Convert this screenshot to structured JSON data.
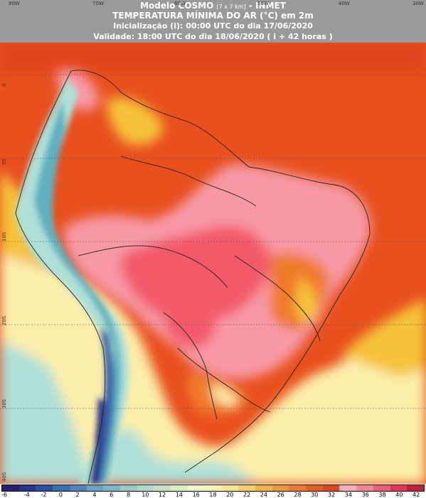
{
  "header": {
    "line1_main": "Modelo COSMO",
    "line1_small": "[7 x 7 km]",
    "line1_tail": "- INMET",
    "line2": "TEMPERATURA MÍNIMA DO AR (°C) em 2m",
    "line3": "Inicialização (i): 00:00 UTC do dia 17/06/2020",
    "line4": "Validade: 18:00 UTC do dia 18/06/2020 ( i + 42 horas )"
  },
  "map": {
    "longitude_labels": [
      "80W",
      "70W",
      "60W",
      "50W",
      "40W",
      "30W"
    ],
    "latitude_labels": [
      "0",
      "5S",
      "10S",
      "20S",
      "30S",
      "40S"
    ],
    "colors": {
      "very_hot": "#f25a6a",
      "hot_pink": "#f79aa6",
      "hot": "#e8501e",
      "warm": "#f07a2a",
      "mild": "#f6c23a",
      "cool": "#fbeeaa",
      "cold": "#aee0d8",
      "colder": "#5fb0c0",
      "freezing": "#3b5ea8",
      "subzero": "#1c1f7a"
    }
  },
  "legend": {
    "labels": [
      "-6",
      "-4",
      "-2",
      "0",
      "2",
      "4",
      "6",
      "8",
      "10",
      "12",
      "14",
      "16",
      "18",
      "20",
      "22",
      "24",
      "26",
      "28",
      "30",
      "32",
      "34",
      "36",
      "38",
      "40",
      "42"
    ],
    "colors": [
      "#2a1f6e",
      "#28338d",
      "#2a4ea3",
      "#3b6db3",
      "#4e86ba",
      "#66a2c3",
      "#7db8c8",
      "#96c9c8",
      "#b1d8c8",
      "#c6e2c6",
      "#d9ecc4",
      "#ebf5c8",
      "#f7f3b4",
      "#fbe68f",
      "#f9cf63",
      "#f6b341",
      "#f39634",
      "#ef7a2c",
      "#e85d22",
      "#e0451c",
      "#f7b0ba",
      "#f58797",
      "#ef5e73",
      "#de3a55",
      "#c4203a"
    ]
  }
}
